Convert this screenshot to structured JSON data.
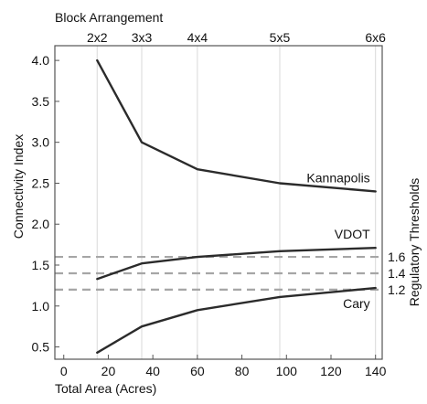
{
  "chart_data": {
    "type": "line",
    "top_axis_title": "Block Arrangement",
    "top_axis_ticks": [
      {
        "label": "2x2",
        "x": 15
      },
      {
        "label": "3x3",
        "x": 35
      },
      {
        "label": "4x4",
        "x": 60
      },
      {
        "label": "5x5",
        "x": 97
      },
      {
        "label": "6x6",
        "x": 140
      }
    ],
    "xlabel": "Total Area (Acres)",
    "ylabel": "Connectivity Index",
    "right_axis_title": "Regulatory Thresholds",
    "xlim": [
      -4,
      143
    ],
    "ylim": [
      0.35,
      4.18
    ],
    "x_ticks": [
      0,
      20,
      40,
      60,
      80,
      100,
      120,
      140
    ],
    "y_ticks": [
      0.5,
      1.0,
      1.5,
      2.0,
      2.5,
      3.0,
      3.5,
      4.0
    ],
    "y_tick_labels": [
      "0.5",
      "1.0",
      "1.5",
      "2.0",
      "2.5",
      "3.0",
      "3.5",
      "4.0"
    ],
    "grid": "vertical",
    "series": [
      {
        "name": "Kannapolis",
        "x": [
          15,
          35,
          60,
          97,
          140
        ],
        "y": [
          4.0,
          3.0,
          2.67,
          2.5,
          2.4
        ]
      },
      {
        "name": "VDOT",
        "x": [
          15,
          35,
          60,
          97,
          140
        ],
        "y": [
          1.33,
          1.52,
          1.6,
          1.67,
          1.71
        ]
      },
      {
        "name": "Cary",
        "x": [
          15,
          35,
          60,
          97,
          140
        ],
        "y": [
          0.43,
          0.75,
          0.95,
          1.11,
          1.22
        ]
      }
    ],
    "thresholds": [
      {
        "label": "1.6",
        "y": 1.6
      },
      {
        "label": "1.4",
        "y": 1.4
      },
      {
        "label": "1.2",
        "y": 1.2
      }
    ],
    "colors": {
      "line": "#2b2b2b",
      "threshold": "#a6a6a6",
      "grid": "#d9d9d9",
      "frame": "#555555"
    }
  }
}
